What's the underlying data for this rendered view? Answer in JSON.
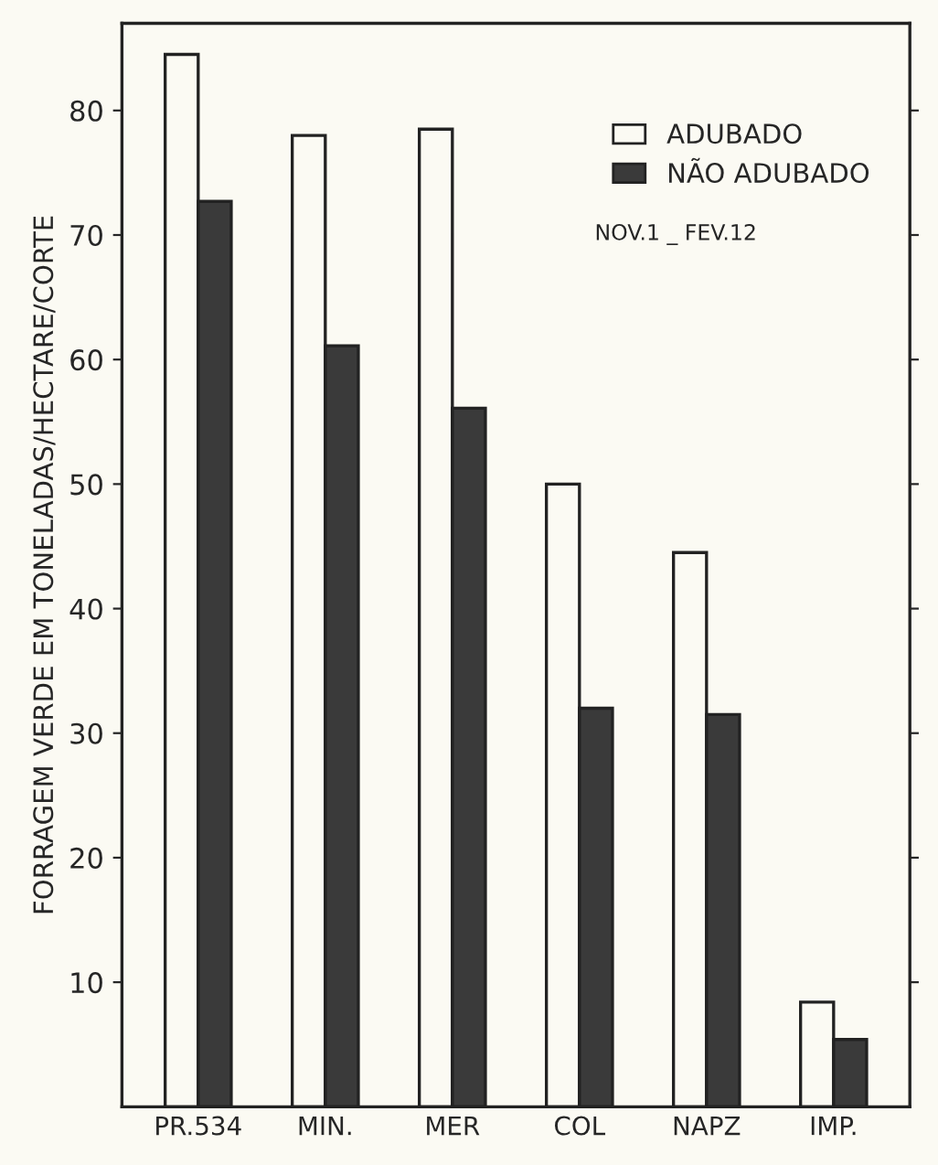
{
  "chart_data": {
    "type": "bar",
    "ylabel": "FORRAGEM VERDE EM TONELADAS/HECTARE/CORTE",
    "categories": [
      "PR.534",
      "MIN.",
      "MER",
      "COL",
      "NAPZ",
      "IMP."
    ],
    "series": [
      {
        "name": "ADUBADO",
        "color": "#fbfaf3",
        "values": [
          84.5,
          78,
          78.5,
          50,
          44.5,
          8.4
        ]
      },
      {
        "name": "NÃO ADUBADO",
        "color": "#3a3a3a",
        "values": [
          72.7,
          61.1,
          56.1,
          32,
          31.5,
          5.4
        ]
      }
    ],
    "ylim": [
      0,
      87
    ],
    "yticks": [
      10,
      20,
      30,
      40,
      50,
      60,
      70,
      80
    ],
    "legend": "top right",
    "grid": false,
    "annotations": [
      "NOV.1 _ FEV.12"
    ]
  }
}
